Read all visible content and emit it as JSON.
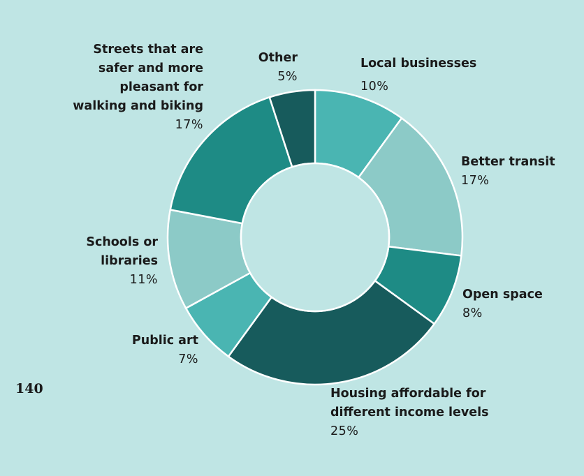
{
  "page_number": "140",
  "chart_data": {
    "type": "donut",
    "slices": [
      {
        "label": "Local businesses",
        "value": 10,
        "pct_label": "10%",
        "color": "#4ab5b2"
      },
      {
        "label": "Better transit",
        "value": 17,
        "pct_label": "17%",
        "color": "#8ccac7"
      },
      {
        "label": "Open space",
        "value": 8,
        "pct_label": "8%",
        "color": "#1e8b85"
      },
      {
        "label": "Housing affordable for different income levels",
        "value": 25,
        "pct_label": "25%",
        "color": "#175b5c"
      },
      {
        "label": "Public art",
        "value": 7,
        "pct_label": "7%",
        "color": "#4ab5b2"
      },
      {
        "label": "Schools or libraries",
        "value": 11,
        "pct_label": "11%",
        "color": "#8ccac7"
      },
      {
        "label": "Streets that are safer and more pleasant for walking and biking",
        "value": 17,
        "pct_label": "17%",
        "color": "#1e8b85"
      },
      {
        "label": "Other",
        "value": 5,
        "pct_label": "5%",
        "color": "#175b5c"
      }
    ]
  }
}
